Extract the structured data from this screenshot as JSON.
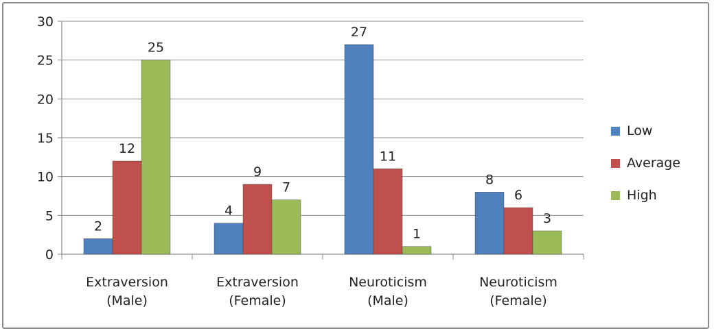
{
  "chart_data": {
    "type": "bar",
    "title": "",
    "xlabel": "",
    "ylabel": "",
    "ylim": [
      0,
      30
    ],
    "yticks": [
      0,
      5,
      10,
      15,
      20,
      25,
      30
    ],
    "grid": true,
    "legend_position": "right",
    "categories": [
      [
        "Extraversion",
        "(Male)"
      ],
      [
        "Extraversion",
        "(Female)"
      ],
      [
        "Neuroticism",
        "(Male)"
      ],
      [
        "Neuroticism",
        "(Female)"
      ]
    ],
    "series": [
      {
        "name": "Low",
        "color": "#4f81bd",
        "values": [
          2,
          4,
          27,
          8
        ]
      },
      {
        "name": "Average",
        "color": "#c0504d",
        "values": [
          12,
          9,
          11,
          6
        ]
      },
      {
        "name": "High",
        "color": "#9bbb59",
        "values": [
          25,
          7,
          1,
          3
        ]
      }
    ]
  }
}
